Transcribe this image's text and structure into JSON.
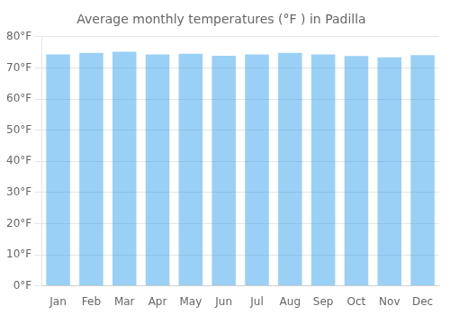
{
  "chart_data": {
    "type": "bar",
    "title": "Average monthly temperatures (°F ) in Padilla",
    "categories": [
      "Jan",
      "Feb",
      "Mar",
      "Apr",
      "May",
      "Jun",
      "Jul",
      "Aug",
      "Sep",
      "Oct",
      "Nov",
      "Dec"
    ],
    "values": [
      74.3,
      74.8,
      75.2,
      74.3,
      74.5,
      73.9,
      74.3,
      74.8,
      74.3,
      73.8,
      73.4,
      74.1
    ],
    "ylim": [
      0,
      80
    ],
    "yticks": [
      {
        "value": 0,
        "label": "0°F"
      },
      {
        "value": 10,
        "label": "10°F"
      },
      {
        "value": 20,
        "label": "20°F"
      },
      {
        "value": 30,
        "label": "30°F"
      },
      {
        "value": 40,
        "label": "40°F"
      },
      {
        "value": 50,
        "label": "50°F"
      },
      {
        "value": 60,
        "label": "60°F"
      },
      {
        "value": 70,
        "label": "70°F"
      },
      {
        "value": 80,
        "label": "80°F"
      }
    ],
    "grid": true
  }
}
